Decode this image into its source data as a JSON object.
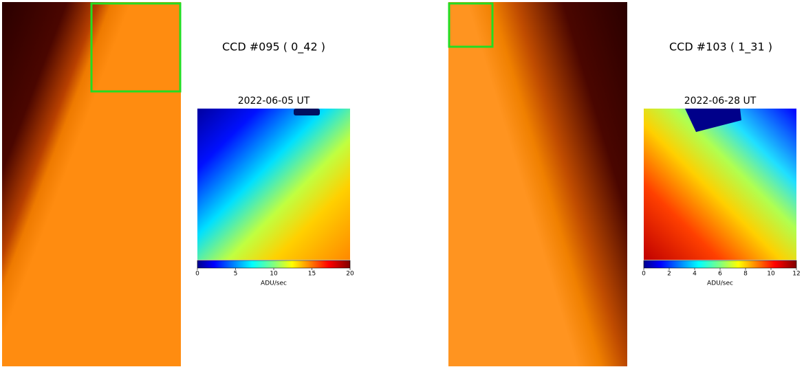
{
  "panels": [
    {
      "title": "CCD #095 ( 0_42 )",
      "date": "2022-06-05 UT",
      "colorbar": {
        "label": "ADU/sec",
        "lim": [
          0,
          20
        ],
        "ticks": [
          0,
          5,
          10,
          15,
          20
        ]
      }
    },
    {
      "title": "CCD #103 ( 1_31 )",
      "date": "2022-06-28 UT",
      "colorbar": {
        "label": "ADU/sec",
        "lim": [
          0,
          12
        ],
        "ticks": [
          0,
          2,
          4,
          6,
          8,
          10,
          12
        ]
      }
    }
  ]
}
